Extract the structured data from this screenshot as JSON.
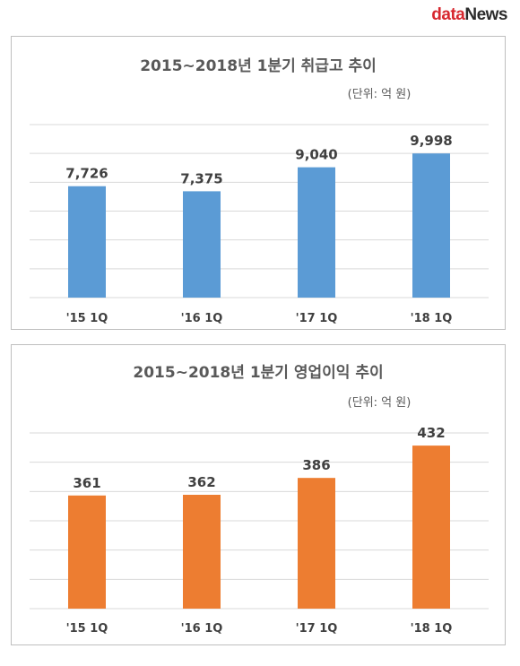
{
  "logo": {
    "part1": "data",
    "part2": "News"
  },
  "chart_data": [
    {
      "type": "bar",
      "title": "2015~2018년 1분기 취급고 추이",
      "unit": "(단위: 억 원)",
      "categories": [
        "'15 1Q",
        "'16 1Q",
        "'17 1Q",
        "'18 1Q"
      ],
      "values": [
        7726,
        7375,
        9040,
        9998
      ],
      "value_labels": [
        "7,726",
        "7,375",
        "9,040",
        "9,998"
      ],
      "ylim": [
        0,
        12000
      ],
      "grid": true,
      "color": "#5b9bd5"
    },
    {
      "type": "bar",
      "title": "2015~2018년 1분기 영업이익 추이",
      "unit": "(단위: 억 원)",
      "categories": [
        "'15 1Q",
        "'16 1Q",
        "'17 1Q",
        "'18 1Q"
      ],
      "values": [
        361,
        362,
        386,
        432
      ],
      "value_labels": [
        "361",
        "362",
        "386",
        "432"
      ],
      "ylim": [
        200,
        450
      ],
      "grid": true,
      "color": "#ed7d31"
    }
  ]
}
